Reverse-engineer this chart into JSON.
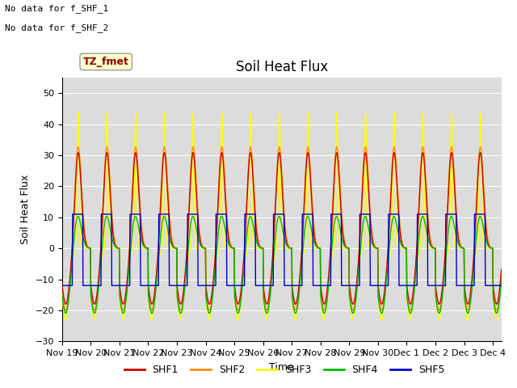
{
  "title": "Soil Heat Flux",
  "ylabel": "Soil Heat Flux",
  "xlabel": "Time",
  "annotations": [
    "No data for f_SHF_1",
    "No data for f_SHF_2"
  ],
  "annotation_label": "TZ_fmet",
  "ylim": [
    -30,
    55
  ],
  "yticks": [
    -30,
    -20,
    -10,
    0,
    10,
    20,
    30,
    40,
    50
  ],
  "bg_color": "#dcdcdc",
  "series_colors": {
    "SHF1": "#cc0000",
    "SHF2": "#ff8c00",
    "SHF3": "#ffff00",
    "SHF4": "#00bb00",
    "SHF5": "#0000cc"
  },
  "xtick_labels": [
    "Nov 19",
    "Nov 20",
    "Nov 21",
    "Nov 22",
    "Nov 23",
    "Nov 24",
    "Nov 25",
    "Nov 26",
    "Nov 27",
    "Nov 28",
    "Nov 29",
    "Nov 30",
    "Dec 1",
    "Dec 2",
    "Dec 3",
    "Dec 4"
  ],
  "title_fontsize": 12,
  "axis_fontsize": 9,
  "tick_fontsize": 8,
  "n_days": 15.3,
  "pts_per_day": 96
}
